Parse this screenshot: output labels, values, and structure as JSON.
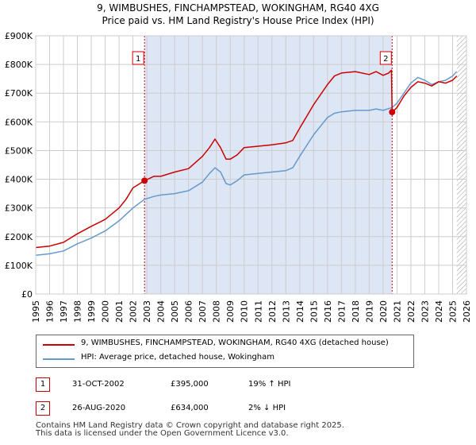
{
  "chart_data": {
    "type": "line",
    "title": "9, WIMBUSHES, FINCHAMPSTEAD, WOKINGHAM, RG40 4XG",
    "subtitle": "Price paid vs. HM Land Registry's House Price Index (HPI)",
    "xlim": [
      1995,
      2026
    ],
    "ylim": [
      0,
      900000
    ],
    "x_ticks": [
      "1995",
      "1996",
      "1997",
      "1998",
      "1999",
      "2000",
      "2001",
      "2002",
      "2003",
      "2004",
      "2005",
      "2006",
      "2007",
      "2008",
      "2009",
      "2010",
      "2011",
      "2012",
      "2013",
      "2014",
      "2015",
      "2016",
      "2017",
      "2018",
      "2019",
      "2020",
      "2021",
      "2022",
      "2023",
      "2024",
      "2025",
      "2026"
    ],
    "y_ticks": [
      {
        "value": 0,
        "label": "£0"
      },
      {
        "value": 100000,
        "label": "£100K"
      },
      {
        "value": 200000,
        "label": "£200K"
      },
      {
        "value": 300000,
        "label": "£300K"
      },
      {
        "value": 400000,
        "label": "£400K"
      },
      {
        "value": 500000,
        "label": "£500K"
      },
      {
        "value": 600000,
        "label": "£600K"
      },
      {
        "value": 700000,
        "label": "£700K"
      },
      {
        "value": 800000,
        "label": "£800K"
      },
      {
        "value": 900000,
        "label": "£900K"
      }
    ],
    "shaded_ranges": [
      [
        2002.83,
        2020.65
      ]
    ],
    "future_hatch_from": 2025.3,
    "series": [
      {
        "name": "9, WIMBUSHES, FINCHAMPSTEAD, WOKINGHAM, RG40 4XG (detached house)",
        "color": "#cc0000",
        "x": [
          1995.0,
          1996.0,
          1997.0,
          1998.0,
          1999.0,
          2000.0,
          2001.0,
          2001.5,
          2002.0,
          2002.83,
          2003.5,
          2004.0,
          2005.0,
          2006.0,
          2007.0,
          2007.5,
          2007.9,
          2008.3,
          2008.7,
          2009.0,
          2009.5,
          2010.0,
          2011.0,
          2012.0,
          2013.0,
          2013.5,
          2014.0,
          2015.0,
          2016.0,
          2016.5,
          2017.0,
          2018.0,
          2019.0,
          2019.5,
          2020.0,
          2020.4,
          2020.6,
          2020.65,
          2021.0,
          2021.5,
          2022.0,
          2022.5,
          2023.0,
          2023.5,
          2024.0,
          2024.5,
          2025.0,
          2025.3
        ],
        "y": [
          162000,
          167000,
          180000,
          210000,
          236000,
          260000,
          300000,
          330000,
          370000,
          395000,
          410000,
          410000,
          425000,
          437000,
          480000,
          510000,
          540000,
          510000,
          470000,
          470000,
          485000,
          510000,
          515000,
          520000,
          527000,
          535000,
          578000,
          660000,
          730000,
          760000,
          770000,
          775000,
          765000,
          775000,
          762000,
          770000,
          780000,
          634000,
          650000,
          690000,
          720000,
          740000,
          735000,
          725000,
          740000,
          735000,
          745000,
          760000
        ]
      },
      {
        "name": "HPI: Average price, detached house, Wokingham",
        "color": "#6699cc",
        "x": [
          1995.0,
          1996.0,
          1997.0,
          1998.0,
          1999.0,
          2000.0,
          2001.0,
          2002.0,
          2002.83,
          2003.5,
          2004.0,
          2005.0,
          2006.0,
          2007.0,
          2007.5,
          2007.9,
          2008.3,
          2008.7,
          2009.0,
          2009.5,
          2010.0,
          2011.0,
          2012.0,
          2013.0,
          2013.5,
          2014.0,
          2015.0,
          2016.0,
          2016.5,
          2017.0,
          2018.0,
          2019.0,
          2019.5,
          2020.0,
          2020.65,
          2021.0,
          2021.5,
          2022.0,
          2022.5,
          2023.0,
          2023.5,
          2024.0,
          2024.5,
          2025.0,
          2025.3
        ],
        "y": [
          135000,
          140000,
          150000,
          175000,
          195000,
          220000,
          255000,
          300000,
          330000,
          340000,
          345000,
          350000,
          360000,
          390000,
          420000,
          440000,
          425000,
          385000,
          380000,
          395000,
          415000,
          420000,
          425000,
          430000,
          440000,
          480000,
          555000,
          615000,
          630000,
          635000,
          640000,
          640000,
          645000,
          640000,
          650000,
          665000,
          700000,
          735000,
          755000,
          745000,
          730000,
          740000,
          745000,
          760000,
          775000
        ]
      }
    ],
    "sales": [
      {
        "label": "1",
        "x": 2002.83,
        "y": 395000
      },
      {
        "label": "2",
        "x": 2020.65,
        "y": 634000
      }
    ]
  },
  "legend": {
    "property_label": "9, WIMBUSHES, FINCHAMPSTEAD, WOKINGHAM, RG40 4XG (detached house)",
    "hpi_label": "HPI: Average price, detached house, Wokingham"
  },
  "sales_table": [
    {
      "num": "1",
      "date": "31-OCT-2002",
      "price": "£395,000",
      "hpi": "19% ↑ HPI"
    },
    {
      "num": "2",
      "date": "26-AUG-2020",
      "price": "£634,000",
      "hpi": "2% ↓ HPI"
    }
  ],
  "footer": {
    "line1": "Contains HM Land Registry data © Crown copyright and database right 2025.",
    "line2": "This data is licensed under the Open Government Licence v3.0."
  },
  "colors": {
    "property": "#cc0000",
    "hpi": "#6699cc",
    "shade": "#dde6f5",
    "grid": "#cccccc"
  }
}
